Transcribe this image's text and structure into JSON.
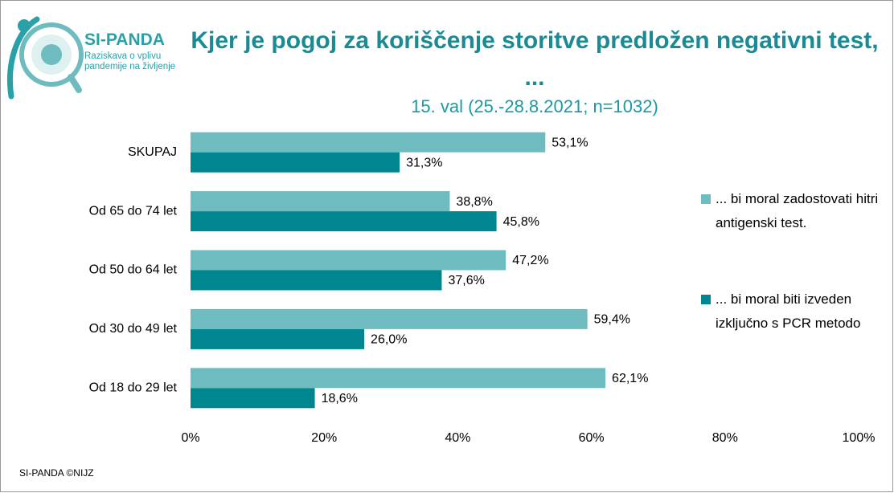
{
  "logo": {
    "name": "SI-PANDA",
    "tagline": "Raziskava o vplivu pandemije na življenje"
  },
  "footer": "SI-PANDA ©NIJZ",
  "chart_data": {
    "type": "hbar",
    "title": "Kjer je pogoj za koriščenje storitve predložen negativni test, ...",
    "subtitle": "15. val (25.-28.8.2021; n=1032)",
    "categories": [
      "SKUPAJ",
      "Od 65 do 74 let",
      "Od 50 do 64 let",
      "Od 30 do 49 let",
      "Od 18 do 29 let"
    ],
    "series": [
      {
        "name": "... bi moral zadostovati hitri antigenski test.",
        "color": "#6fbcc0",
        "values": [
          53.1,
          38.8,
          47.2,
          59.4,
          62.1
        ],
        "value_labels": [
          "53,1%",
          "38,8%",
          "47,2%",
          "59,4%",
          "62,1%"
        ]
      },
      {
        "name": "... bi moral biti izveden izključno s PCR metodo",
        "color": "#00868f",
        "values": [
          31.3,
          45.8,
          37.6,
          26.0,
          18.6
        ],
        "value_labels": [
          "31,3%",
          "45,8%",
          "37,6%",
          "26,0%",
          "18,6%"
        ]
      }
    ],
    "xlim": [
      0,
      100
    ],
    "xticks": [
      {
        "value": 0,
        "label": "0%"
      },
      {
        "value": 20,
        "label": "20%"
      },
      {
        "value": 40,
        "label": "40%"
      },
      {
        "value": 60,
        "label": "60%"
      },
      {
        "value": 80,
        "label": "80%"
      },
      {
        "value": 100,
        "label": "100%"
      }
    ],
    "grid": false,
    "legend": "right"
  }
}
